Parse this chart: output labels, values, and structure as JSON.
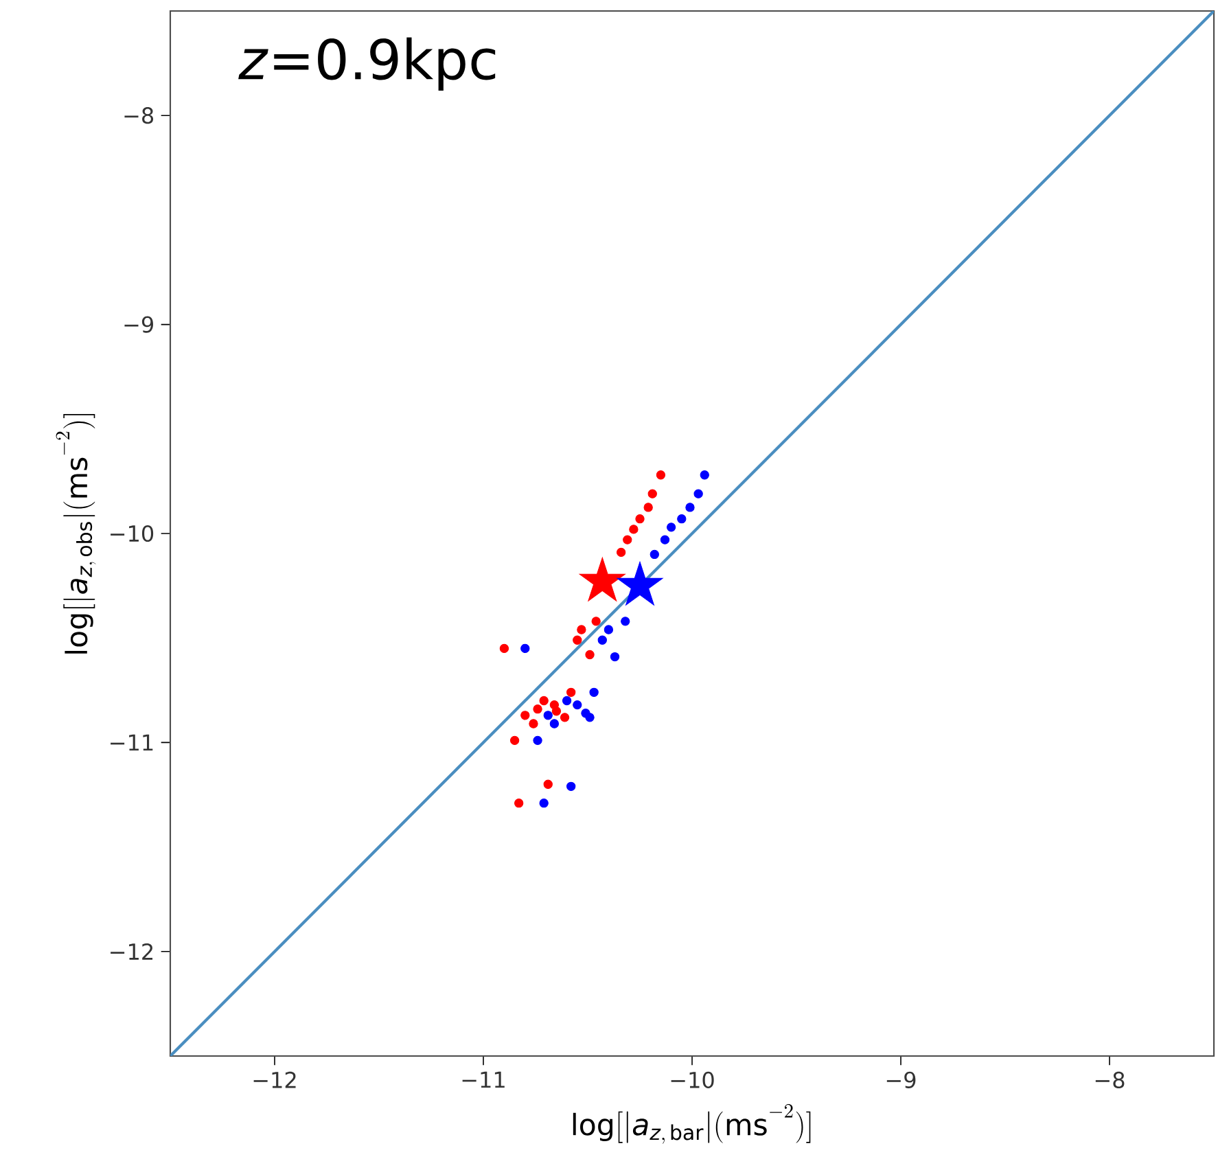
{
  "chart_data": {
    "type": "scatter",
    "xlabel": "\\mathrm{log}[|\\mathit{a}_{\\mathit{z},\\,\\mathrm{bar}}|(\\mathrm{ms}^{-2})]",
    "ylabel": "\\mathrm{log}[|\\mathit{a}_{\\mathit{z},\\,\\mathrm{obs}}|(\\mathrm{ms}^{-2})]",
    "annotations": [
      "*z*=0.9kpc"
    ],
    "xlim": [
      -12.5,
      -7.5
    ],
    "ylim": [
      -12.5,
      -7.5
    ],
    "xticks": [
      {
        "value": -12,
        "label": "−12"
      },
      {
        "value": -11,
        "label": "−11"
      },
      {
        "value": -10,
        "label": "−10"
      },
      {
        "value": -9,
        "label": "−9"
      },
      {
        "value": -8,
        "label": "−8"
      }
    ],
    "yticks": [
      {
        "value": -12,
        "label": "−12"
      },
      {
        "value": -11,
        "label": "−11"
      },
      {
        "value": -10,
        "label": "−10"
      },
      {
        "value": -9,
        "label": "−9"
      },
      {
        "value": -8,
        "label": "−8"
      }
    ],
    "series": [
      {
        "type": "line",
        "color": "#4a8ec0",
        "marker": "none",
        "x": [
          -12.5,
          -7.5
        ],
        "values": [
          -12.5,
          -7.5
        ]
      },
      {
        "color": "#ff0000",
        "marker": "circle",
        "x": [
          -10.15,
          -10.19,
          -10.21,
          -10.25,
          -10.28,
          -10.31,
          -10.34,
          -10.46,
          -10.53,
          -10.55,
          -10.49,
          -10.9,
          -10.58,
          -10.71,
          -10.74,
          -10.8,
          -10.76,
          -10.66,
          -10.65,
          -10.61,
          -10.85,
          -10.69,
          -10.83
        ],
        "values": [
          -9.72,
          -9.81,
          -9.875,
          -9.93,
          -9.98,
          -10.03,
          -10.09,
          -10.42,
          -10.46,
          -10.51,
          -10.58,
          -10.55,
          -10.76,
          -10.8,
          -10.84,
          -10.87,
          -10.91,
          -10.82,
          -10.85,
          -10.88,
          -10.99,
          -11.2,
          -11.29
        ]
      },
      {
        "color": "#0000ff",
        "marker": "circle",
        "x": [
          -9.94,
          -9.97,
          -10.01,
          -10.05,
          -10.1,
          -10.13,
          -10.18,
          -10.32,
          -10.4,
          -10.43,
          -10.37,
          -10.8,
          -10.47,
          -10.6,
          -10.55,
          -10.51,
          -10.49,
          -10.69,
          -10.66,
          -10.74,
          -10.58,
          -10.71
        ],
        "values": [
          -9.72,
          -9.81,
          -9.875,
          -9.93,
          -9.97,
          -10.03,
          -10.1,
          -10.42,
          -10.46,
          -10.51,
          -10.59,
          -10.55,
          -10.76,
          -10.8,
          -10.82,
          -10.86,
          -10.88,
          -10.87,
          -10.91,
          -10.99,
          -11.21,
          -11.29
        ]
      },
      {
        "color": "#ff0000",
        "marker": "star",
        "x": [
          -10.43
        ],
        "values": [
          -10.23
        ]
      },
      {
        "color": "#0000ff",
        "marker": "star",
        "x": [
          -10.25
        ],
        "values": [
          -10.25
        ]
      }
    ]
  }
}
